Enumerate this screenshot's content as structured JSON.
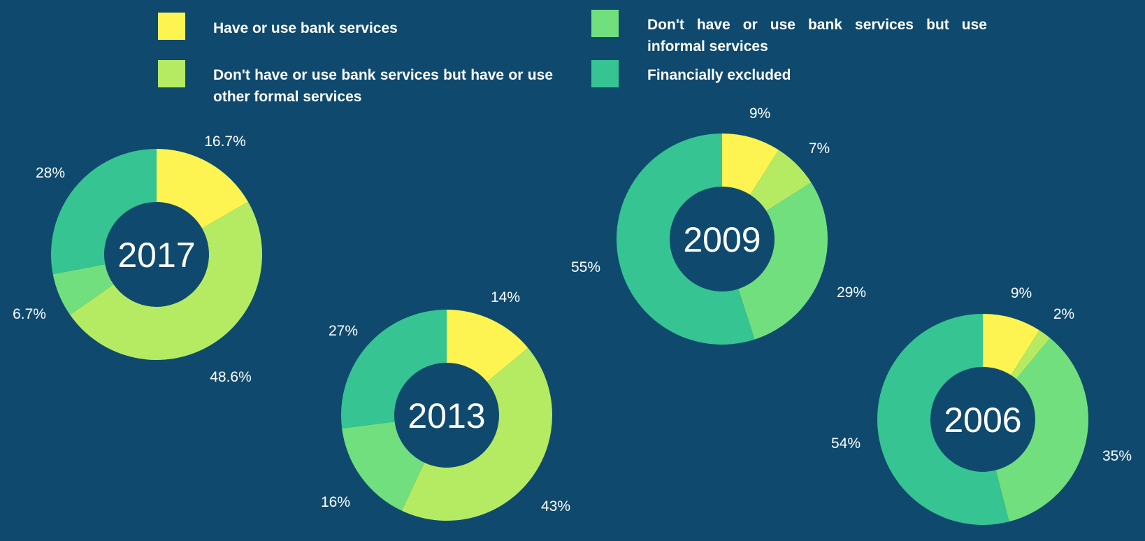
{
  "legend": [
    {
      "label": "Have or use bank services",
      "color": "#fdf452"
    },
    {
      "label": "Don't have or use bank services but have or use other formal services",
      "color": "#b5eb62"
    },
    {
      "label": "Don't have or use bank services but use informal services",
      "color": "#72df7e"
    },
    {
      "label": "Financially excluded",
      "color": "#36c492"
    }
  ],
  "colors": {
    "background": "#0f4a6e",
    "text": "#ffffff"
  },
  "chart_data": [
    {
      "type": "pie",
      "variant": "donut",
      "center_label": "2017",
      "categories": [
        "Have or use bank services",
        "Don't have or use bank services but have or use other formal services",
        "Don't have or use bank services but use informal services",
        "Financially excluded"
      ],
      "values": [
        16.7,
        48.6,
        6.7,
        28
      ],
      "labels": [
        "16.7%",
        "48.6%",
        "6.7%",
        "28%"
      ]
    },
    {
      "type": "pie",
      "variant": "donut",
      "center_label": "2013",
      "categories": [
        "Have or use bank services",
        "Don't have or use bank services but have or use other formal services",
        "Don't have or use bank services but use informal services",
        "Financially excluded"
      ],
      "values": [
        14,
        43,
        16,
        27
      ],
      "labels": [
        "14%",
        "43%",
        "16%",
        "27%"
      ]
    },
    {
      "type": "pie",
      "variant": "donut",
      "center_label": "2009",
      "categories": [
        "Have or use bank services",
        "Don't have or use bank services but have or use other formal services",
        "Don't have or use bank services but use informal services",
        "Financially excluded"
      ],
      "values": [
        9,
        7,
        29,
        55
      ],
      "labels": [
        "9%",
        "7%",
        "29%",
        "55%"
      ]
    },
    {
      "type": "pie",
      "variant": "donut",
      "center_label": "2006",
      "categories": [
        "Have or use bank services",
        "Don't have or use bank services but have or use other formal services",
        "Don't have or use bank services but use informal services",
        "Financially excluded"
      ],
      "values": [
        9,
        2,
        35,
        54
      ],
      "labels": [
        "9%",
        "2%",
        "35%",
        "54%"
      ]
    }
  ]
}
